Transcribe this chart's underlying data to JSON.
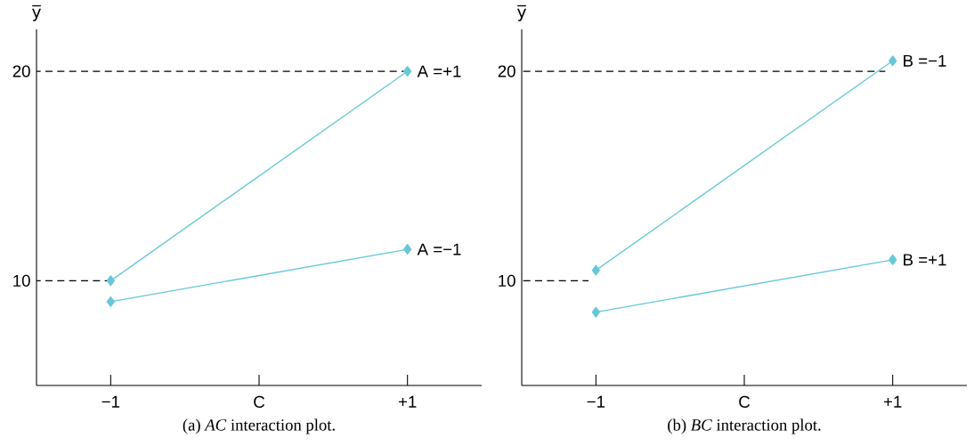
{
  "chart_data": [
    {
      "type": "line",
      "title": "(a) *AC* interaction plot.",
      "ylabel": "y̅",
      "xlim": [
        -1.5,
        1.5
      ],
      "ylim": [
        5,
        22
      ],
      "xticks": [
        {
          "value": -1,
          "label": "−1"
        },
        {
          "value": 0,
          "label": "C"
        },
        {
          "value": 1,
          "label": "+1"
        }
      ],
      "yticks": [
        10,
        20
      ],
      "marker": "diamond",
      "line_style": "solid",
      "series": [
        {
          "name": "A =+1",
          "color": "#66c8d8",
          "x": [
            -1,
            1
          ],
          "values": [
            10,
            20
          ]
        },
        {
          "name": "A =−1",
          "color": "#66c8d8",
          "x": [
            -1,
            1
          ],
          "values": [
            9,
            11.5
          ]
        },
        {
          "type": "line",
          "color": "#000000",
          "x": [
            -1.5,
            1
          ],
          "values": [
            20,
            20
          ],
          "marker": "none",
          "line_style": "dashed"
        },
        {
          "type": "line",
          "color": "#000000",
          "x": [
            -1.5,
            -1
          ],
          "values": [
            10,
            10
          ],
          "marker": "none",
          "line_style": "dashed"
        }
      ]
    },
    {
      "type": "line",
      "title": "(b) *BC* interaction plot.",
      "ylabel": "y̅",
      "xlim": [
        -1.5,
        1.5
      ],
      "ylim": [
        5,
        22
      ],
      "xticks": [
        {
          "value": -1,
          "label": "−1"
        },
        {
          "value": 0,
          "label": "C"
        },
        {
          "value": 1,
          "label": "+1"
        }
      ],
      "yticks": [
        10,
        20
      ],
      "marker": "diamond",
      "line_style": "solid",
      "series": [
        {
          "name": "B =−1",
          "color": "#66c8d8",
          "x": [
            -1,
            1
          ],
          "values": [
            10.5,
            20.5
          ]
        },
        {
          "name": "B =+1",
          "color": "#66c8d8",
          "x": [
            -1,
            1
          ],
          "values": [
            8.5,
            11
          ]
        },
        {
          "type": "line",
          "color": "#000000",
          "x": [
            -1.5,
            0.95
          ],
          "values": [
            20,
            20
          ],
          "marker": "none",
          "line_style": "dashed"
        },
        {
          "type": "line",
          "color": "#000000",
          "x": [
            -1.5,
            -1.05
          ],
          "values": [
            10,
            10
          ],
          "marker": "none",
          "line_style": "dashed"
        }
      ]
    }
  ]
}
